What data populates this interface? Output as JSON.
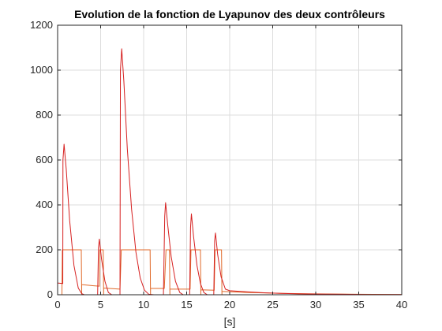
{
  "chart_data": {
    "type": "line",
    "title": "Evolution de la fonction de Lyapunov des deux contrôleurs",
    "xlabel": "[s]",
    "ylabel": "",
    "xlim": [
      0,
      40
    ],
    "ylim": [
      0,
      1200
    ],
    "x_ticks": [
      0,
      5,
      10,
      15,
      20,
      25,
      30,
      35,
      40
    ],
    "y_ticks": [
      0,
      200,
      400,
      600,
      800,
      1000,
      1200
    ],
    "grid": true,
    "legend": "none",
    "colors": {
      "series_1": "#d62020",
      "series_2": "#e06a2a",
      "grid": "#dcdcdc",
      "axes": "#262626"
    },
    "series": [
      {
        "points": [
          [
            0,
            52
          ],
          [
            0.6,
            50
          ],
          [
            0.62,
            600
          ],
          [
            0.75,
            670
          ],
          [
            1.0,
            560
          ],
          [
            1.4,
            330
          ],
          [
            1.9,
            130
          ],
          [
            2.4,
            30
          ],
          [
            2.8,
            5
          ],
          [
            3.1,
            0
          ],
          [
            3.6,
            0
          ],
          [
            4.2,
            0
          ],
          [
            4.65,
            0
          ],
          [
            4.75,
            210
          ],
          [
            4.85,
            248
          ],
          [
            5.1,
            160
          ],
          [
            5.5,
            60
          ],
          [
            5.9,
            10
          ],
          [
            6.3,
            0
          ],
          [
            7.25,
            0
          ],
          [
            7.3,
            1000
          ],
          [
            7.45,
            1095
          ],
          [
            7.7,
            950
          ],
          [
            8.1,
            650
          ],
          [
            8.6,
            380
          ],
          [
            9.1,
            190
          ],
          [
            9.6,
            75
          ],
          [
            10.1,
            20
          ],
          [
            10.6,
            2
          ],
          [
            11.2,
            0
          ],
          [
            12.3,
            0
          ],
          [
            12.45,
            350
          ],
          [
            12.55,
            410
          ],
          [
            12.8,
            310
          ],
          [
            13.2,
            170
          ],
          [
            13.7,
            60
          ],
          [
            14.2,
            10
          ],
          [
            14.6,
            0
          ],
          [
            15.35,
            0
          ],
          [
            15.45,
            300
          ],
          [
            15.55,
            360
          ],
          [
            15.8,
            260
          ],
          [
            16.2,
            130
          ],
          [
            16.6,
            50
          ],
          [
            17.0,
            10
          ],
          [
            17.4,
            0
          ],
          [
            18.15,
            0
          ],
          [
            18.25,
            240
          ],
          [
            18.35,
            275
          ],
          [
            18.6,
            180
          ],
          [
            19.0,
            80
          ],
          [
            19.5,
            25
          ],
          [
            20,
            18
          ],
          [
            22,
            13
          ],
          [
            24,
            9
          ],
          [
            26,
            6
          ],
          [
            28,
            4
          ],
          [
            30,
            3
          ],
          [
            33,
            2
          ],
          [
            36,
            1
          ],
          [
            40,
            1
          ]
        ]
      },
      {
        "points": [
          [
            0.5,
            0
          ],
          [
            0.55,
            200
          ],
          [
            2.75,
            200
          ],
          [
            2.8,
            0
          ],
          [
            2.8,
            45
          ],
          [
            4.2,
            40
          ],
          [
            4.85,
            38
          ],
          [
            4.9,
            200
          ],
          [
            5.3,
            200
          ],
          [
            5.35,
            0
          ],
          [
            5.35,
            30
          ],
          [
            7.25,
            25
          ],
          [
            7.4,
            200
          ],
          [
            10.75,
            200
          ],
          [
            10.8,
            0
          ],
          [
            10.8,
            28
          ],
          [
            12.4,
            28
          ],
          [
            12.6,
            200
          ],
          [
            13.0,
            200
          ],
          [
            13.05,
            0
          ],
          [
            13.05,
            25
          ],
          [
            15.4,
            25
          ],
          [
            15.5,
            200
          ],
          [
            16.6,
            200
          ],
          [
            16.65,
            0
          ],
          [
            16.65,
            22
          ],
          [
            18.2,
            20
          ],
          [
            18.3,
            200
          ],
          [
            19.05,
            200
          ],
          [
            19.1,
            0
          ],
          [
            19.1,
            15
          ],
          [
            22,
            10
          ],
          [
            26,
            6
          ],
          [
            30,
            4
          ],
          [
            35,
            2
          ],
          [
            40,
            1
          ]
        ]
      }
    ]
  }
}
